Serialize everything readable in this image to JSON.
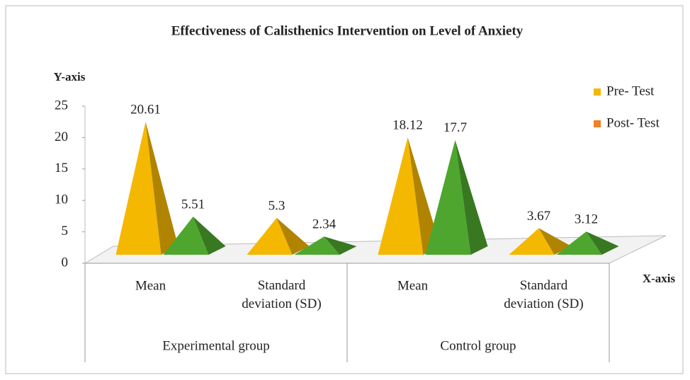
{
  "chart_data": {
    "type": "pyramid3d",
    "title": "Effectiveness of  Calisthenics Intervention on  Level of  Anxiety",
    "y_axis_label": "Y-axis",
    "x_axis_label": "X-axis",
    "categories": [
      "Mean",
      "Standard deviation (SD)",
      "Mean",
      "Standard deviation (SD)"
    ],
    "groups": [
      "Experimental group",
      "Control group"
    ],
    "series": [
      {
        "name": "Pre- Test",
        "color": "#f5b800",
        "legend_color": "#f5b800",
        "values": [
          20.61,
          5.3,
          18.12,
          3.67
        ]
      },
      {
        "name": "Post- Test",
        "color": "#4ea62e",
        "legend_color": "#f07f2a",
        "values": [
          5.51,
          2.34,
          17.7,
          3.12
        ]
      }
    ],
    "ylim": [
      0,
      25
    ],
    "yticks": [
      0,
      5,
      10,
      15,
      20,
      25
    ],
    "legend": "right"
  }
}
